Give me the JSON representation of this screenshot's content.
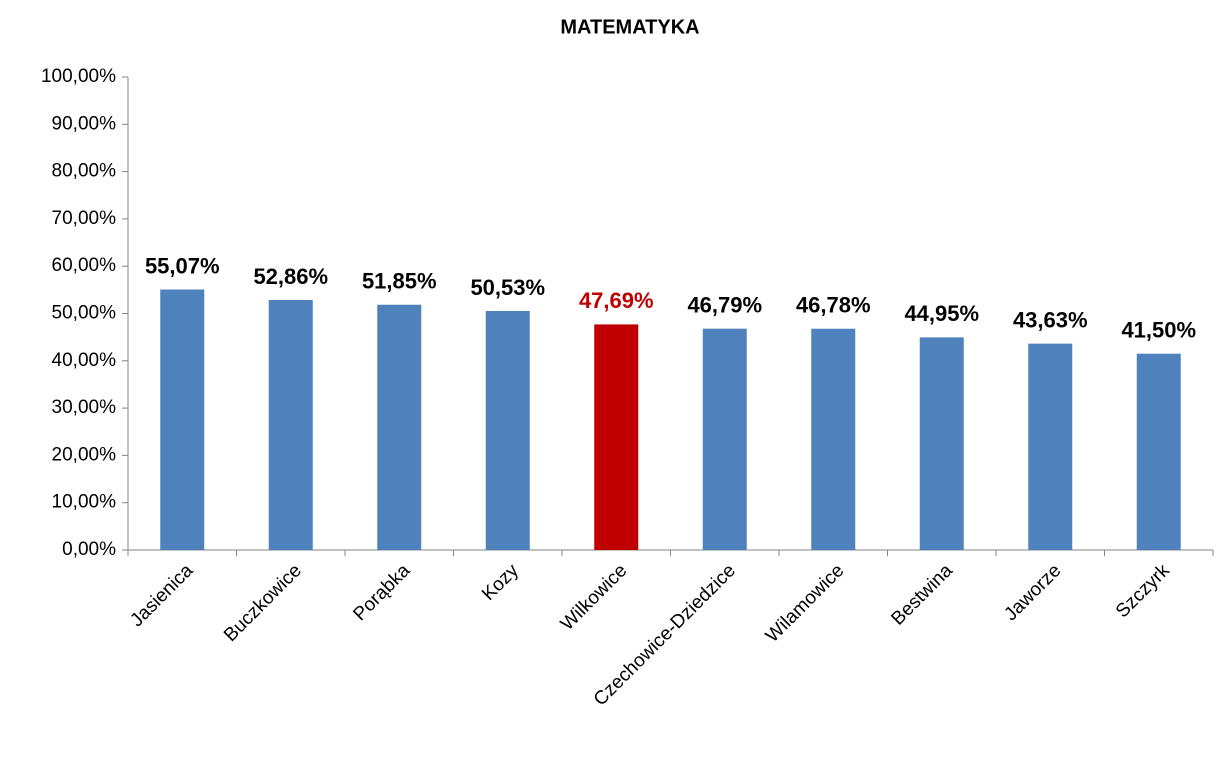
{
  "chart_data": {
    "type": "bar",
    "title": "MATEMATYKA",
    "categories": [
      "Jasienica",
      "Buczkowice",
      "Porąbka",
      "Kozy",
      "Wilkowice",
      "Czechowice-Dziedzice",
      "Wilamowice",
      "Bestwina",
      "Jaworze",
      "Szczyrk"
    ],
    "values": [
      55.07,
      52.86,
      51.85,
      50.53,
      47.69,
      46.79,
      46.78,
      44.95,
      43.63,
      41.5
    ],
    "value_labels": [
      "55,07%",
      "52,86%",
      "51,85%",
      "50,53%",
      "47,69%",
      "46,79%",
      "46,78%",
      "44,95%",
      "43,63%",
      "41,50%"
    ],
    "colors": [
      "#4f81bd",
      "#4f81bd",
      "#4f81bd",
      "#4f81bd",
      "#c00000",
      "#4f81bd",
      "#4f81bd",
      "#4f81bd",
      "#4f81bd",
      "#4f81bd"
    ],
    "label_colors": [
      "#000000",
      "#000000",
      "#000000",
      "#000000",
      "#c00000",
      "#000000",
      "#000000",
      "#000000",
      "#000000",
      "#000000"
    ],
    "ylim": [
      0,
      100
    ],
    "yticks": [
      {
        "value": 0,
        "label": "0,00%"
      },
      {
        "value": 10,
        "label": "10,00%"
      },
      {
        "value": 20,
        "label": "20,00%"
      },
      {
        "value": 30,
        "label": "30,00%"
      },
      {
        "value": 40,
        "label": "40,00%"
      },
      {
        "value": 50,
        "label": "50,00%"
      },
      {
        "value": 60,
        "label": "60,00%"
      },
      {
        "value": 70,
        "label": "70,00%"
      },
      {
        "value": 80,
        "label": "80,00%"
      },
      {
        "value": 90,
        "label": "90,00%"
      },
      {
        "value": 100,
        "label": "100,00%"
      }
    ],
    "grid": false
  }
}
